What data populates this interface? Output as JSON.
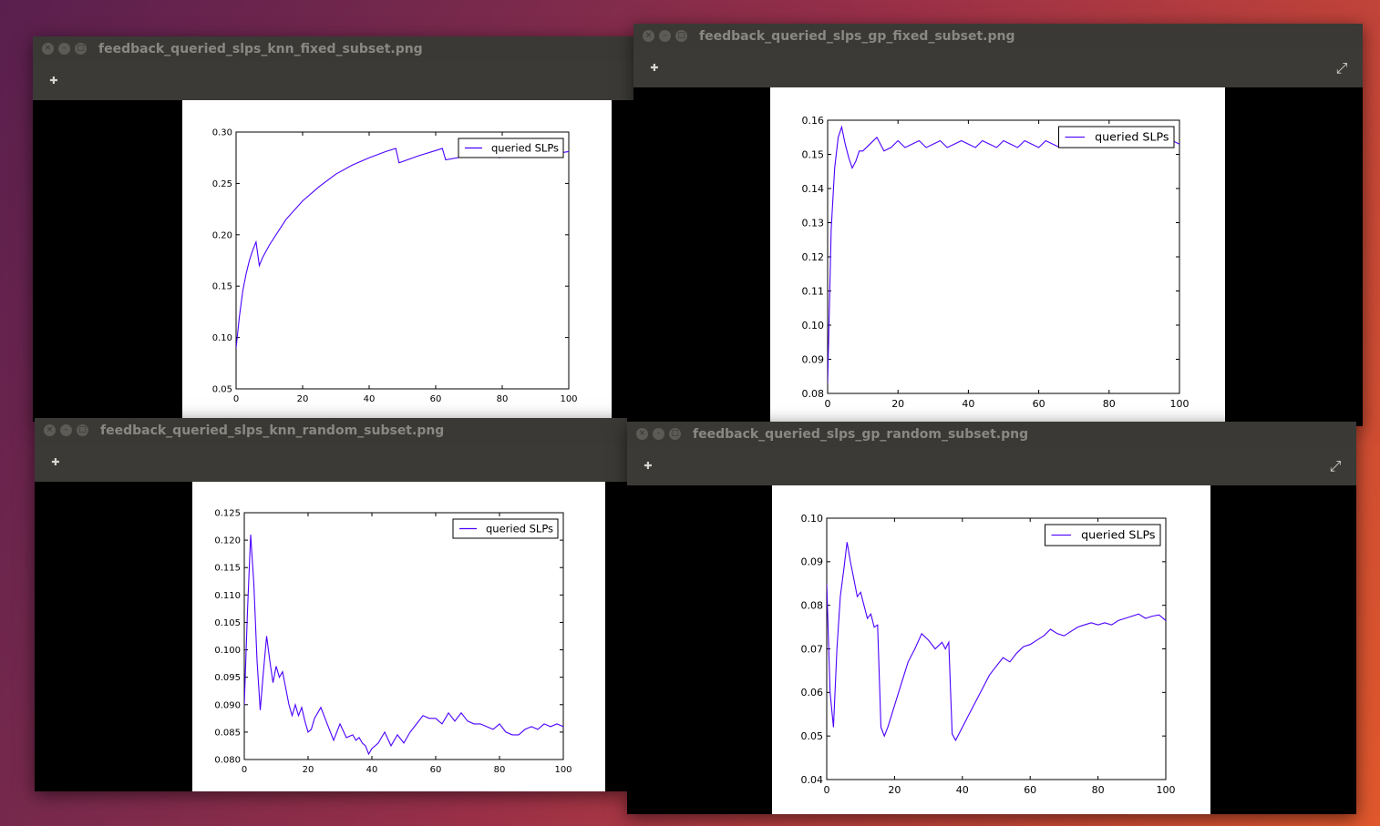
{
  "windows": [
    {
      "title": "feedback_queried_slps_knn_fixed_subset.png",
      "add_icon": "✚",
      "expand_icon": ""
    },
    {
      "title": "feedback_queried_slps_gp_fixed_subset.png",
      "add_icon": "✚",
      "expand_icon": "⤢"
    },
    {
      "title": "feedback_queried_slps_knn_random_subset.png",
      "add_icon": "✚",
      "expand_icon": ""
    },
    {
      "title": "feedback_queried_slps_gp_random_subset.png",
      "add_icon": "✚",
      "expand_icon": "⤢"
    }
  ],
  "window_buttons": {
    "close": "×",
    "minimize": "–",
    "maximize": "□"
  },
  "colors": {
    "line": "#4b00ff",
    "titlebar": "#3a3935"
  },
  "chart_data": [
    {
      "type": "line",
      "xlim": [
        0,
        100
      ],
      "ylim": [
        0.05,
        0.3
      ],
      "xticks": [
        "0",
        "20",
        "40",
        "60",
        "80",
        "100"
      ],
      "yticks": [
        "0.05",
        "0.10",
        "0.15",
        "0.20",
        "0.25",
        "0.30"
      ],
      "legend": "top-right",
      "series": [
        {
          "name": "queried SLPs",
          "x": [
            0,
            1,
            2,
            3,
            4,
            5,
            6,
            7,
            8,
            10,
            15,
            20,
            25,
            30,
            35,
            40,
            45,
            48,
            49,
            55,
            60,
            62,
            63,
            70,
            78,
            79,
            85,
            92,
            93,
            98,
            100
          ],
          "y": [
            0.09,
            0.12,
            0.145,
            0.162,
            0.175,
            0.185,
            0.193,
            0.17,
            0.178,
            0.19,
            0.215,
            0.233,
            0.247,
            0.259,
            0.268,
            0.275,
            0.281,
            0.284,
            0.27,
            0.277,
            0.282,
            0.284,
            0.273,
            0.277,
            0.281,
            0.275,
            0.279,
            0.281,
            0.276,
            0.28,
            0.281
          ]
        }
      ]
    },
    {
      "type": "line",
      "xlim": [
        0,
        100
      ],
      "ylim": [
        0.08,
        0.16
      ],
      "xticks": [
        "0",
        "20",
        "40",
        "60",
        "80",
        "100"
      ],
      "yticks": [
        "0.08",
        "0.09",
        "0.10",
        "0.11",
        "0.12",
        "0.13",
        "0.14",
        "0.15",
        "0.16"
      ],
      "legend": "top-right",
      "series": [
        {
          "name": "queried SLPs",
          "x": [
            0,
            1,
            2,
            3,
            4,
            5,
            6,
            7,
            8,
            9,
            10,
            12,
            14,
            16,
            18,
            20,
            22,
            24,
            26,
            28,
            30,
            32,
            34,
            36,
            38,
            40,
            42,
            44,
            46,
            48,
            50,
            52,
            54,
            56,
            58,
            60,
            62,
            64,
            66,
            68,
            70,
            72,
            74,
            76,
            78,
            80,
            82,
            84,
            86,
            88,
            90,
            92,
            94,
            96,
            98,
            100
          ],
          "y": [
            0.083,
            0.128,
            0.146,
            0.155,
            0.158,
            0.153,
            0.149,
            0.146,
            0.148,
            0.151,
            0.151,
            0.153,
            0.155,
            0.151,
            0.152,
            0.154,
            0.152,
            0.153,
            0.154,
            0.152,
            0.153,
            0.154,
            0.152,
            0.153,
            0.154,
            0.153,
            0.152,
            0.154,
            0.153,
            0.152,
            0.154,
            0.153,
            0.152,
            0.154,
            0.153,
            0.152,
            0.154,
            0.153,
            0.152,
            0.154,
            0.153,
            0.152,
            0.154,
            0.153,
            0.152,
            0.154,
            0.153,
            0.152,
            0.154,
            0.153,
            0.152,
            0.154,
            0.153,
            0.152,
            0.154,
            0.153
          ]
        }
      ]
    },
    {
      "type": "line",
      "xlim": [
        0,
        100
      ],
      "ylim": [
        0.08,
        0.125
      ],
      "xticks": [
        "0",
        "20",
        "40",
        "60",
        "80",
        "100"
      ],
      "yticks": [
        "0.080",
        "0.085",
        "0.090",
        "0.095",
        "0.100",
        "0.105",
        "0.110",
        "0.115",
        "0.120",
        "0.125"
      ],
      "legend": "top-right",
      "series": [
        {
          "name": "queried SLPs",
          "x": [
            0,
            1,
            2,
            3,
            4,
            5,
            6,
            7,
            8,
            9,
            10,
            11,
            12,
            13,
            14,
            15,
            16,
            17,
            18,
            19,
            20,
            21,
            22,
            24,
            26,
            28,
            30,
            32,
            34,
            35,
            36,
            37,
            38,
            39,
            40,
            42,
            44,
            46,
            48,
            50,
            52,
            54,
            56,
            58,
            60,
            62,
            64,
            66,
            68,
            70,
            72,
            74,
            76,
            78,
            80,
            82,
            84,
            86,
            88,
            90,
            92,
            94,
            96,
            98,
            100
          ],
          "y": [
            0.09,
            0.107,
            0.121,
            0.112,
            0.098,
            0.089,
            0.096,
            0.1025,
            0.098,
            0.094,
            0.097,
            0.095,
            0.096,
            0.093,
            0.09,
            0.088,
            0.09,
            0.088,
            0.0895,
            0.087,
            0.085,
            0.0855,
            0.0875,
            0.0895,
            0.0865,
            0.0835,
            0.0865,
            0.084,
            0.0845,
            0.0835,
            0.084,
            0.083,
            0.0825,
            0.081,
            0.082,
            0.083,
            0.085,
            0.0825,
            0.0845,
            0.083,
            0.085,
            0.0865,
            0.088,
            0.0875,
            0.0875,
            0.0865,
            0.0885,
            0.087,
            0.0885,
            0.087,
            0.0865,
            0.0865,
            0.086,
            0.0855,
            0.0865,
            0.085,
            0.0845,
            0.0845,
            0.0855,
            0.086,
            0.0855,
            0.0865,
            0.086,
            0.0865,
            0.086
          ]
        }
      ]
    },
    {
      "type": "line",
      "xlim": [
        0,
        100
      ],
      "ylim": [
        0.04,
        0.1
      ],
      "xticks": [
        "0",
        "20",
        "40",
        "60",
        "80",
        "100"
      ],
      "yticks": [
        "0.04",
        "0.05",
        "0.06",
        "0.07",
        "0.08",
        "0.09",
        "0.10"
      ],
      "legend": "top-right",
      "series": [
        {
          "name": "queried SLPs",
          "x": [
            0,
            1,
            2,
            3,
            4,
            5,
            6,
            7,
            8,
            9,
            10,
            11,
            12,
            13,
            14,
            15,
            16,
            17,
            18,
            20,
            22,
            24,
            26,
            28,
            30,
            32,
            34,
            35,
            36,
            37,
            38,
            40,
            42,
            44,
            46,
            48,
            50,
            52,
            54,
            56,
            58,
            60,
            62,
            64,
            66,
            68,
            70,
            72,
            74,
            76,
            78,
            80,
            82,
            84,
            86,
            88,
            90,
            92,
            94,
            96,
            98,
            100
          ],
          "y": [
            0.085,
            0.06,
            0.052,
            0.07,
            0.082,
            0.088,
            0.0945,
            0.09,
            0.086,
            0.082,
            0.083,
            0.08,
            0.077,
            0.078,
            0.075,
            0.0755,
            0.052,
            0.05,
            0.052,
            0.057,
            0.062,
            0.067,
            0.07,
            0.0735,
            0.072,
            0.07,
            0.0715,
            0.07,
            0.0715,
            0.0505,
            0.049,
            0.052,
            0.055,
            0.058,
            0.061,
            0.064,
            0.066,
            0.068,
            0.067,
            0.069,
            0.0705,
            0.071,
            0.072,
            0.073,
            0.0745,
            0.0735,
            0.073,
            0.074,
            0.075,
            0.0755,
            0.076,
            0.0755,
            0.076,
            0.0755,
            0.0765,
            0.077,
            0.0775,
            0.078,
            0.077,
            0.0775,
            0.0778,
            0.0765
          ]
        }
      ]
    }
  ]
}
